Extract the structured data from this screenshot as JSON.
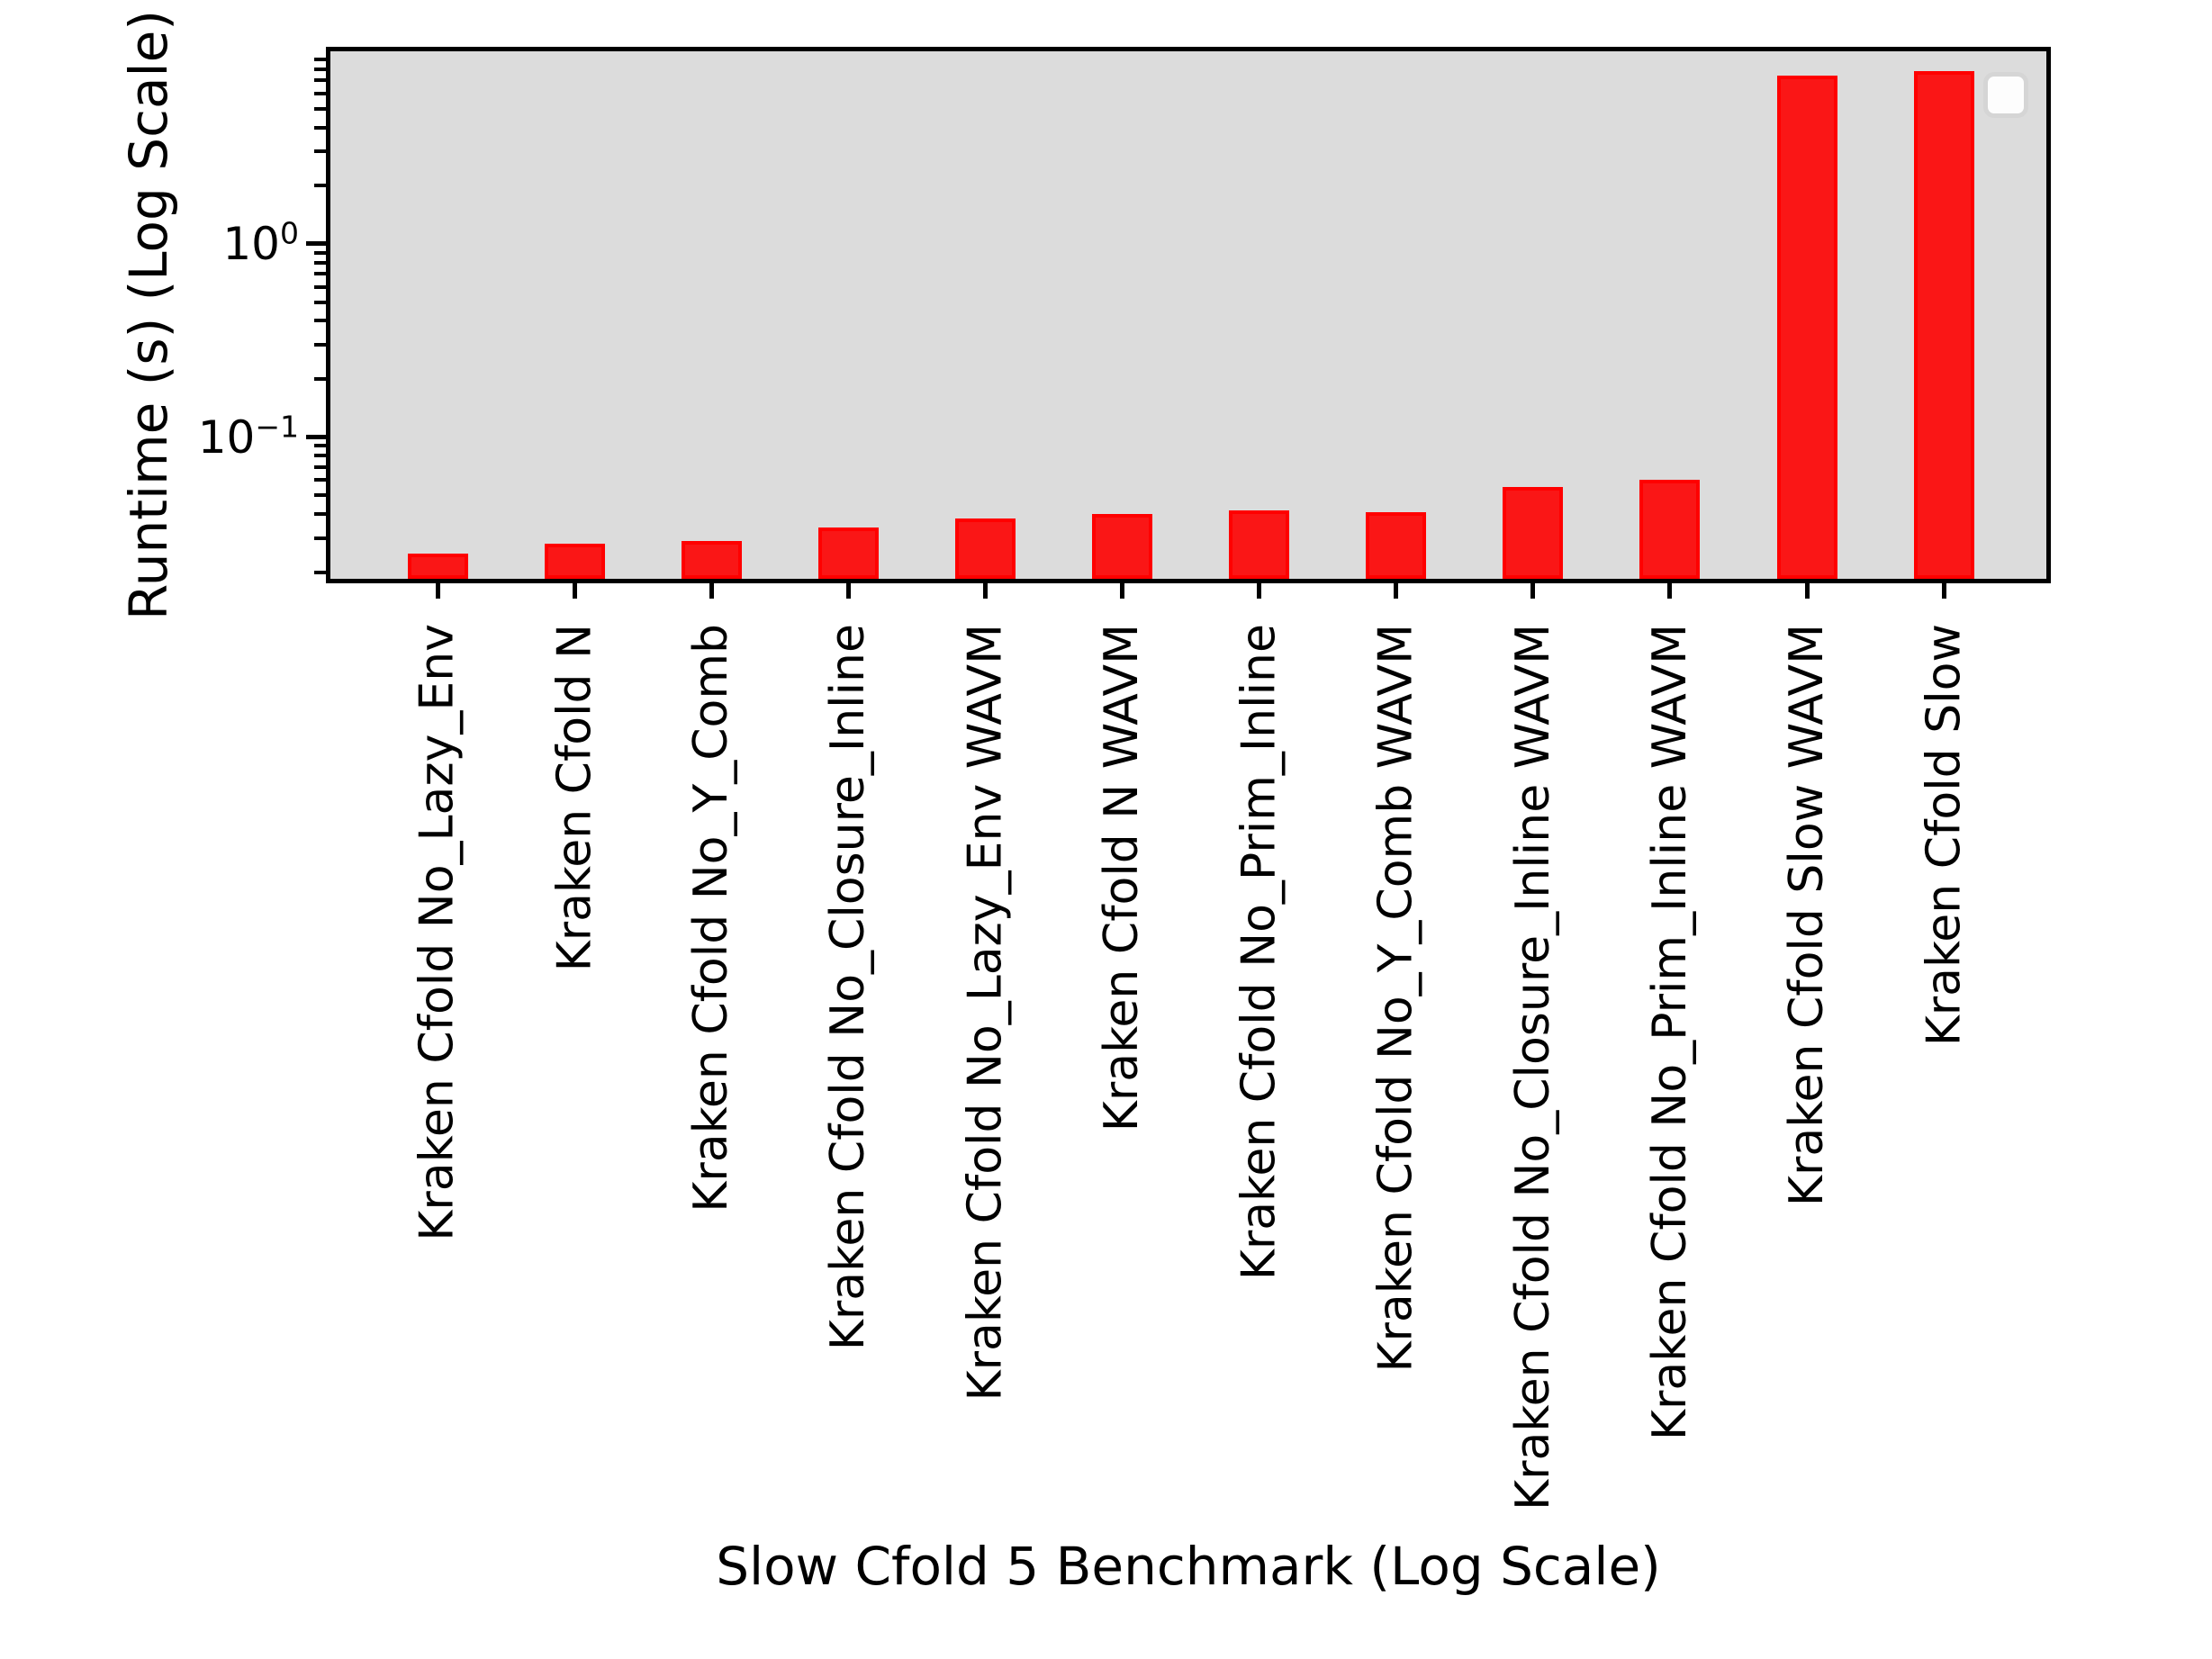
{
  "figure": {
    "background": "#ffffff",
    "plot_background": "#dcdcdc",
    "spine_color": "#000000",
    "bar_fill": "#fa1616",
    "bar_edge": "#ff0000",
    "legend": {
      "visible": true,
      "entries": [],
      "background": "#fdfdfd",
      "border": "#d5d5d5"
    },
    "y_ticks": [
      {
        "base": "10",
        "exp": "0",
        "value": 1.0
      },
      {
        "base": "10",
        "exp": "−1",
        "value": 0.1
      }
    ]
  },
  "chart_data": {
    "type": "bar",
    "title": "",
    "xlabel": "Slow Cfold 5 Benchmark (Log Scale)",
    "ylabel": "Runtime (s) (Log Scale)",
    "y_scale": "log",
    "ylim": [
      0.0185,
      9.9
    ],
    "grid": false,
    "legend_position": "upper-right-empty",
    "bar_color": "red",
    "categories": [
      "Kraken Cfold No_Lazy_Env",
      "Kraken Cfold N",
      "Kraken Cfold No_Y_Comb",
      "Kraken Cfold No_Closure_Inline",
      "Kraken Cfold No_Lazy_Env WAVM",
      "Kraken Cfold N WAVM",
      "Kraken Cfold No_Prim_Inline",
      "Kraken Cfold No_Y_Comb WAVM",
      "Kraken Cfold No_Closure_Inline WAVM",
      "Kraken Cfold No_Prim_Inline WAVM",
      "Kraken Cfold Slow WAVM",
      "Kraken Cfold Slow"
    ],
    "values": [
      0.025,
      0.028,
      0.029,
      0.034,
      0.038,
      0.04,
      0.042,
      0.041,
      0.055,
      0.06,
      7.4,
      7.8
    ]
  }
}
